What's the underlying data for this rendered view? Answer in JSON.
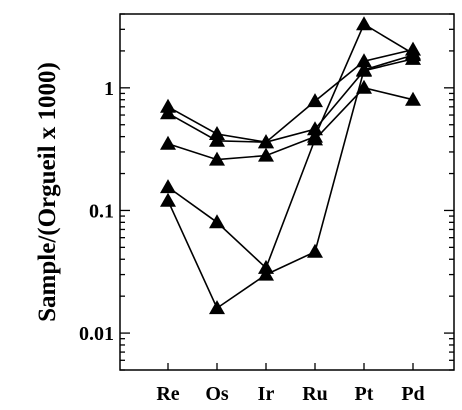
{
  "chart_data": {
    "type": "line",
    "title": "",
    "xlabel": "",
    "ylabel": "Sample/(Orgueil x 1000)",
    "yscale": "log",
    "ylim": [
      0.005,
      4
    ],
    "yticks": [
      0.01,
      0.1,
      1
    ],
    "ytick_labels": [
      "0.01",
      "0.1",
      "1"
    ],
    "categories": [
      "Re",
      "Os",
      "Ir",
      "Ru",
      "Pt",
      "Pd"
    ],
    "grid": false,
    "legend": "none",
    "marker": "filled-triangle",
    "color": "#000000",
    "series": [
      {
        "values": [
          0.7,
          0.42,
          0.36,
          0.78,
          1.65,
          2.05
        ]
      },
      {
        "values": [
          0.62,
          0.37,
          0.36,
          0.46,
          1.38,
          1.72
        ]
      },
      {
        "values": [
          0.35,
          0.26,
          0.28,
          0.4,
          3.3,
          1.9
        ]
      },
      {
        "values": [
          0.155,
          0.08,
          0.034,
          0.38,
          1.0,
          0.8
        ]
      },
      {
        "values": [
          0.12,
          0.016,
          0.03,
          0.046,
          1.4,
          1.85
        ]
      }
    ]
  }
}
